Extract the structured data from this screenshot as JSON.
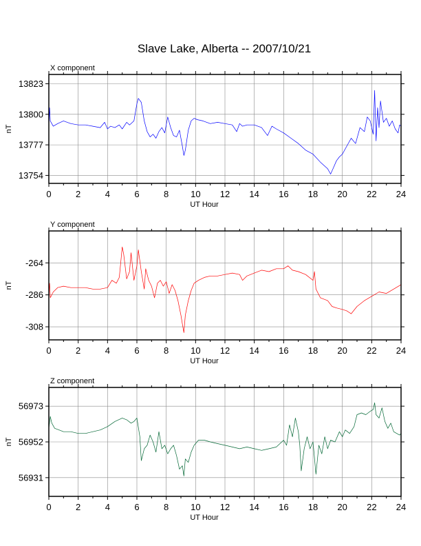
{
  "figure": {
    "title": "Slave Lake, Alberta -- 2007/10/21"
  },
  "chart_data": [
    {
      "type": "line",
      "title": "X component",
      "xlabel": "UT Hour",
      "ylabel": "nT",
      "xlim": [
        0,
        24
      ],
      "ylim": [
        13748,
        13830
      ],
      "xticks": [
        0,
        2,
        4,
        6,
        8,
        10,
        12,
        14,
        16,
        18,
        20,
        22,
        24
      ],
      "yticks": [
        13754,
        13777,
        13800,
        13823
      ],
      "grid": true,
      "series": [
        {
          "color": "#0000ff",
          "x": [
            0,
            0.05,
            0.1,
            0.3,
            0.6,
            1,
            1.5,
            2,
            2.5,
            3,
            3.5,
            3.8,
            4,
            4.2,
            4.5,
            4.8,
            5,
            5.3,
            5.5,
            5.8,
            6,
            6.1,
            6.3,
            6.5,
            6.7,
            6.9,
            7.1,
            7.3,
            7.5,
            7.7,
            7.9,
            8.1,
            8.3,
            8.5,
            8.7,
            8.9,
            9.1,
            9.2,
            9.3,
            9.5,
            9.7,
            9.9,
            10.1,
            10.5,
            11,
            11.5,
            12,
            12.5,
            12.8,
            13,
            13.2,
            13.5,
            14,
            14.5,
            14.9,
            15.2,
            15.5,
            16,
            16.5,
            17,
            17.5,
            18,
            18.5,
            19,
            19.2,
            19.4,
            19.6,
            19.8,
            20,
            20.3,
            20.6,
            20.9,
            21.2,
            21.5,
            21.7,
            21.9,
            22.1,
            22.2,
            22.3,
            22.4,
            22.5,
            22.6,
            22.8,
            23,
            23.2,
            23.4,
            23.6,
            23.8,
            23.9,
            24
          ],
          "values": [
            13791,
            13805,
            13795,
            13791,
            13793,
            13795,
            13793,
            13792,
            13792,
            13791,
            13790,
            13794,
            13789,
            13791,
            13790,
            13792,
            13789,
            13794,
            13792,
            13795,
            13808,
            13812,
            13809,
            13795,
            13787,
            13783,
            13785,
            13782,
            13787,
            13790,
            13786,
            13798,
            13790,
            13784,
            13783,
            13788,
            13776,
            13769,
            13773,
            13788,
            13795,
            13797,
            13796,
            13795,
            13793,
            13794,
            13793,
            13792,
            13787,
            13793,
            13791,
            13792,
            13792,
            13790,
            13784,
            13791,
            13789,
            13786,
            13782,
            13778,
            13773,
            13770,
            13764,
            13759,
            13755,
            13760,
            13765,
            13768,
            13770,
            13776,
            13782,
            13778,
            13790,
            13787,
            13798,
            13795,
            13785,
            13818,
            13780,
            13805,
            13790,
            13810,
            13794,
            13797,
            13791,
            13795,
            13789,
            13786,
            13792,
            13791
          ]
        }
      ]
    },
    {
      "type": "line",
      "title": "Y component",
      "xlabel": "UT Hour",
      "ylabel": "nT",
      "xlim": [
        0,
        24
      ],
      "ylim": [
        -317,
        -242
      ],
      "xticks": [
        0,
        2,
        4,
        6,
        8,
        10,
        12,
        14,
        16,
        18,
        20,
        22,
        24
      ],
      "yticks": [
        -264,
        -286,
        -308
      ],
      "grid": true,
      "series": [
        {
          "color": "#ff0000",
          "x": [
            0,
            0.05,
            0.1,
            0.3,
            0.6,
            1,
            1.5,
            2,
            2.5,
            3,
            3.5,
            4,
            4.3,
            4.6,
            4.8,
            5,
            5.1,
            5.3,
            5.5,
            5.6,
            5.8,
            6,
            6.1,
            6.3,
            6.5,
            6.6,
            6.8,
            7,
            7.2,
            7.4,
            7.6,
            7.8,
            8,
            8.2,
            8.4,
            8.6,
            8.8,
            9,
            9.1,
            9.2,
            9.3,
            9.5,
            9.7,
            9.9,
            10.2,
            10.6,
            11,
            11.5,
            12,
            12.5,
            13,
            13.2,
            13.5,
            14,
            14.5,
            15,
            15.5,
            16,
            16.3,
            16.6,
            17,
            17.5,
            18,
            18.1,
            18.2,
            18.5,
            19,
            19.3,
            19.6,
            20,
            20.3,
            20.6,
            21,
            21.5,
            22,
            22.5,
            23,
            23.5,
            24
          ],
          "values": [
            -285,
            -278,
            -288,
            -284,
            -281,
            -280,
            -281,
            -281,
            -281,
            -282,
            -282,
            -281,
            -276,
            -278,
            -274,
            -253,
            -258,
            -275,
            -270,
            -257,
            -276,
            -266,
            -255,
            -270,
            -282,
            -268,
            -276,
            -280,
            -288,
            -278,
            -276,
            -280,
            -277,
            -285,
            -279,
            -283,
            -290,
            -300,
            -306,
            -312,
            -300,
            -290,
            -283,
            -278,
            -276,
            -274,
            -273,
            -273,
            -272,
            -271,
            -272,
            -276,
            -273,
            -271,
            -269,
            -270,
            -268,
            -268,
            -266,
            -269,
            -270,
            -272,
            -276,
            -270,
            -282,
            -288,
            -290,
            -294,
            -295,
            -296,
            -297,
            -299,
            -294,
            -290,
            -287,
            -284,
            -285,
            -282,
            -279
          ]
        }
      ]
    },
    {
      "type": "line",
      "title": "Z component",
      "xlabel": "UT Hour",
      "ylabel": "nT",
      "xlim": [
        0,
        24
      ],
      "ylim": [
        56920,
        56984
      ],
      "xticks": [
        0,
        2,
        4,
        6,
        8,
        10,
        12,
        14,
        16,
        18,
        20,
        22,
        24
      ],
      "yticks": [
        56931,
        56952,
        56973
      ],
      "grid": true,
      "series": [
        {
          "color": "#006633",
          "x": [
            0,
            0.1,
            0.2,
            0.4,
            0.7,
            1,
            1.5,
            2,
            2.5,
            3,
            3.5,
            4,
            4.5,
            5,
            5.3,
            5.6,
            5.8,
            6,
            6.2,
            6.3,
            6.5,
            6.7,
            6.9,
            7.1,
            7.3,
            7.5,
            7.7,
            7.9,
            8.1,
            8.3,
            8.5,
            8.7,
            8.9,
            9.1,
            9.2,
            9.3,
            9.5,
            9.7,
            9.9,
            10.2,
            10.6,
            11,
            11.5,
            12,
            12.5,
            13,
            13.5,
            14,
            14.5,
            15,
            15.5,
            16,
            16.2,
            16.4,
            16.6,
            16.8,
            17,
            17.1,
            17.2,
            17.4,
            17.6,
            17.8,
            18,
            18.2,
            18.4,
            18.6,
            18.8,
            19,
            19.2,
            19.5,
            19.8,
            20,
            20.2,
            20.5,
            20.8,
            21,
            21.3,
            21.6,
            21.9,
            22.1,
            22.2,
            22.3,
            22.5,
            22.7,
            22.9,
            23.1,
            23.3,
            23.5,
            23.7,
            23.9,
            24
          ],
          "values": [
            56960,
            56967,
            56963,
            56960,
            56959,
            56958,
            56958,
            56957,
            56957,
            56958,
            56959,
            56961,
            56964,
            56966,
            56965,
            56963,
            56964,
            56966,
            56955,
            56941,
            56948,
            56950,
            56956,
            56952,
            56946,
            56958,
            56948,
            56950,
            56945,
            56948,
            56950,
            56944,
            56936,
            56938,
            56932,
            56942,
            56940,
            56946,
            56950,
            56953,
            56953,
            56952,
            56951,
            56950,
            56949,
            56948,
            56949,
            56948,
            56947,
            56948,
            56949,
            56953,
            56950,
            56962,
            56955,
            56966,
            56958,
            56950,
            56935,
            56948,
            56955,
            56948,
            56952,
            56933,
            56950,
            56945,
            56955,
            56948,
            56953,
            56952,
            56958,
            56955,
            56959,
            56957,
            56961,
            56968,
            56969,
            56968,
            56970,
            56971,
            56975,
            56968,
            56966,
            56972,
            56964,
            56960,
            56963,
            56958,
            56957,
            56956,
            56957
          ]
        }
      ]
    }
  ]
}
